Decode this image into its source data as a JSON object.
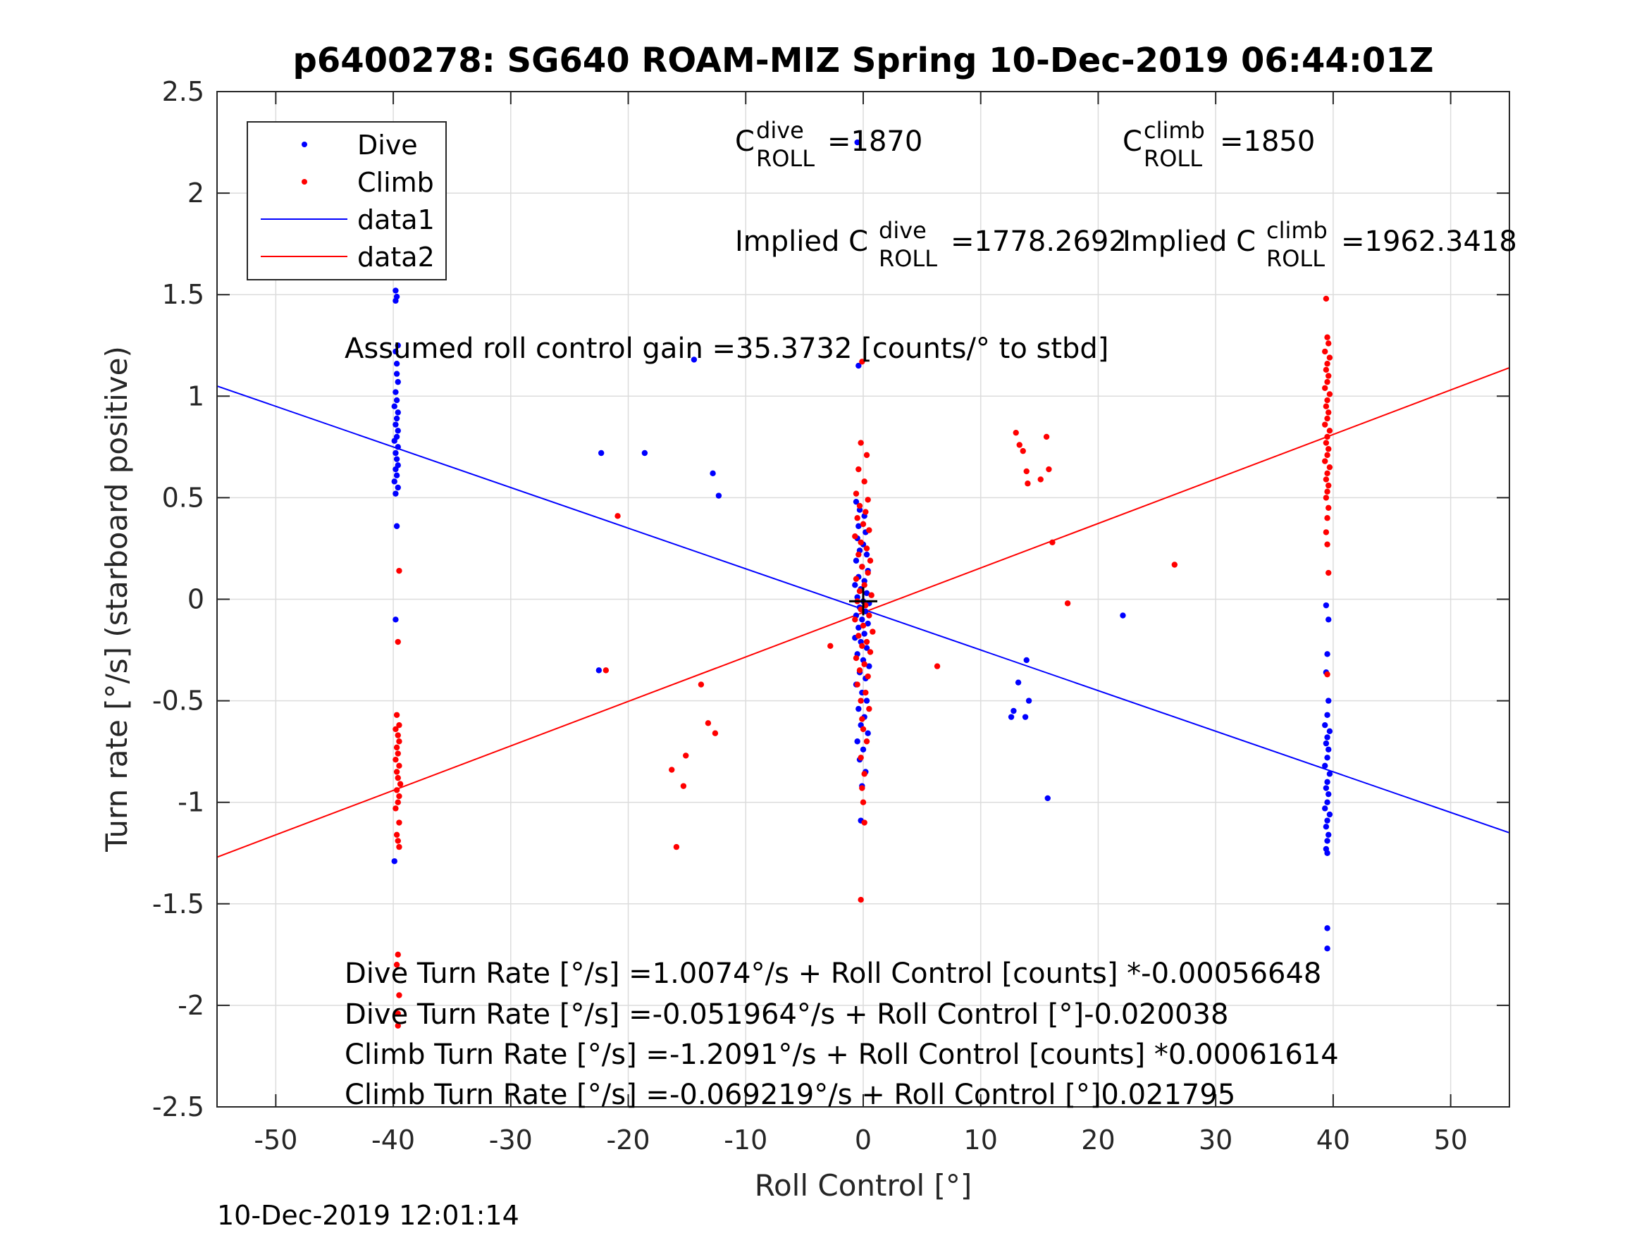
{
  "chart_data": {
    "type": "scatter",
    "title": "p6400278: SG640 ROAM-MIZ Spring 10-Dec-2019 06:44:01Z",
    "xlabel": "Roll Control [°]",
    "ylabel": "Turn rate [°/s] (starboard positive)",
    "xlim": [
      -55,
      55
    ],
    "ylim": [
      -2.5,
      2.5
    ],
    "xticks": [
      -50,
      -40,
      -30,
      -20,
      -10,
      0,
      10,
      20,
      30,
      40,
      50
    ],
    "yticks": [
      -2.5,
      -2,
      -1.5,
      -1,
      -0.5,
      0,
      0.5,
      1,
      1.5,
      2,
      2.5
    ],
    "xtick_labels": [
      "-50",
      "-40",
      "-30",
      "-20",
      "-10",
      "0",
      "10",
      "20",
      "30",
      "40",
      "50"
    ],
    "ytick_labels": [
      "-2.5",
      "-2",
      "-1.5",
      "-1",
      "-0.5",
      "0",
      "0.5",
      "1",
      "1.5",
      "2",
      "2.5"
    ],
    "grid": true,
    "legend_position": "top-left",
    "legend": [
      {
        "label": "Dive",
        "kind": "marker",
        "color": "#0000ff"
      },
      {
        "label": "Climb",
        "kind": "marker",
        "color": "#ff0000"
      },
      {
        "label": "data1",
        "kind": "line",
        "color": "#0000ff"
      },
      {
        "label": "data2",
        "kind": "line",
        "color": "#ff0000"
      }
    ],
    "series": [
      {
        "name": "Dive",
        "kind": "points",
        "color": "#0000ff",
        "points": [
          [
            -39.8,
            1.52
          ],
          [
            -39.7,
            1.49
          ],
          [
            -39.8,
            1.47
          ],
          [
            -39.6,
            1.25
          ],
          [
            -39.8,
            1.22
          ],
          [
            -39.7,
            1.16
          ],
          [
            -39.7,
            1.11
          ],
          [
            -39.6,
            1.07
          ],
          [
            -39.8,
            1.02
          ],
          [
            -39.7,
            0.98
          ],
          [
            -39.9,
            0.95
          ],
          [
            -39.6,
            0.92
          ],
          [
            -39.7,
            0.89
          ],
          [
            -39.8,
            0.86
          ],
          [
            -39.6,
            0.83
          ],
          [
            -39.7,
            0.8
          ],
          [
            -39.9,
            0.78
          ],
          [
            -39.6,
            0.75
          ],
          [
            -39.8,
            0.72
          ],
          [
            -39.7,
            0.69
          ],
          [
            -39.6,
            0.66
          ],
          [
            -39.8,
            0.64
          ],
          [
            -39.7,
            0.61
          ],
          [
            -39.9,
            0.58
          ],
          [
            -39.6,
            0.55
          ],
          [
            -39.8,
            0.52
          ],
          [
            -39.7,
            0.36
          ],
          [
            -39.8,
            -0.1
          ],
          [
            -39.9,
            -1.29
          ],
          [
            -22.3,
            0.72
          ],
          [
            -18.6,
            0.72
          ],
          [
            -14.4,
            1.18
          ],
          [
            -12.8,
            0.62
          ],
          [
            -12.3,
            0.51
          ],
          [
            -22.5,
            -0.35
          ],
          [
            -0.5,
            2.25
          ],
          [
            -0.4,
            1.15
          ],
          [
            -0.6,
            0.48
          ],
          [
            -0.3,
            0.44
          ],
          [
            0.1,
            0.41
          ],
          [
            -0.4,
            0.36
          ],
          [
            0.2,
            0.33
          ],
          [
            -0.5,
            0.3
          ],
          [
            0.0,
            0.27
          ],
          [
            -0.3,
            0.24
          ],
          [
            0.3,
            0.22
          ],
          [
            -0.6,
            0.19
          ],
          [
            -0.1,
            0.16
          ],
          [
            0.4,
            0.14
          ],
          [
            -0.4,
            0.11
          ],
          [
            0.1,
            0.09
          ],
          [
            -0.7,
            0.07
          ],
          [
            -0.2,
            0.05
          ],
          [
            0.3,
            0.03
          ],
          [
            -0.5,
            0.01
          ],
          [
            0.0,
            -0.01
          ],
          [
            0.5,
            -0.02
          ],
          [
            -0.3,
            -0.04
          ],
          [
            0.2,
            -0.06
          ],
          [
            -0.6,
            -0.08
          ],
          [
            -0.1,
            -0.1
          ],
          [
            0.4,
            -0.12
          ],
          [
            -0.4,
            -0.14
          ],
          [
            0.1,
            -0.17
          ],
          [
            -0.7,
            -0.19
          ],
          [
            -0.2,
            -0.21
          ],
          [
            0.3,
            -0.24
          ],
          [
            -0.5,
            -0.27
          ],
          [
            0.0,
            -0.3
          ],
          [
            0.5,
            -0.33
          ],
          [
            -0.3,
            -0.36
          ],
          [
            0.2,
            -0.39
          ],
          [
            -0.6,
            -0.42
          ],
          [
            -0.1,
            -0.46
          ],
          [
            0.3,
            -0.5
          ],
          [
            -0.4,
            -0.54
          ],
          [
            0.1,
            -0.58
          ],
          [
            -0.2,
            -0.62
          ],
          [
            0.4,
            -0.66
          ],
          [
            -0.5,
            -0.7
          ],
          [
            0.0,
            -0.74
          ],
          [
            -0.3,
            -0.79
          ],
          [
            0.2,
            -0.85
          ],
          [
            -0.1,
            -0.92
          ],
          [
            -0.2,
            -1.09
          ],
          [
            12.8,
            -0.55
          ],
          [
            13.2,
            -0.41
          ],
          [
            12.6,
            -0.58
          ],
          [
            13.9,
            -0.3
          ],
          [
            13.8,
            -0.58
          ],
          [
            14.1,
            -0.5
          ],
          [
            15.7,
            -0.98
          ],
          [
            22.1,
            -0.08
          ],
          [
            39.4,
            -0.03
          ],
          [
            39.6,
            -0.1
          ],
          [
            39.5,
            -0.27
          ],
          [
            39.4,
            -0.36
          ],
          [
            39.6,
            -0.5
          ],
          [
            39.5,
            -0.57
          ],
          [
            39.3,
            -0.62
          ],
          [
            39.7,
            -0.65
          ],
          [
            39.5,
            -0.68
          ],
          [
            39.4,
            -0.71
          ],
          [
            39.6,
            -0.74
          ],
          [
            39.5,
            -0.78
          ],
          [
            39.3,
            -0.82
          ],
          [
            39.7,
            -0.86
          ],
          [
            39.5,
            -0.9
          ],
          [
            39.4,
            -0.93
          ],
          [
            39.6,
            -0.96
          ],
          [
            39.5,
            -1.0
          ],
          [
            39.3,
            -1.03
          ],
          [
            39.7,
            -1.06
          ],
          [
            39.5,
            -1.09
          ],
          [
            39.4,
            -1.12
          ],
          [
            39.6,
            -1.16
          ],
          [
            39.5,
            -1.19
          ],
          [
            39.4,
            -1.23
          ],
          [
            39.5,
            -1.25
          ],
          [
            39.5,
            -1.62
          ],
          [
            39.5,
            -1.72
          ]
        ]
      },
      {
        "name": "Climb",
        "kind": "points",
        "color": "#ff0000",
        "points": [
          [
            -39.5,
            0.14
          ],
          [
            -39.6,
            -0.21
          ],
          [
            -39.7,
            -0.57
          ],
          [
            -39.5,
            -0.62
          ],
          [
            -39.8,
            -0.64
          ],
          [
            -39.6,
            -0.67
          ],
          [
            -39.5,
            -0.7
          ],
          [
            -39.7,
            -0.73
          ],
          [
            -39.6,
            -0.76
          ],
          [
            -39.8,
            -0.79
          ],
          [
            -39.5,
            -0.82
          ],
          [
            -39.7,
            -0.85
          ],
          [
            -39.6,
            -0.88
          ],
          [
            -39.4,
            -0.91
          ],
          [
            -39.7,
            -0.94
          ],
          [
            -39.5,
            -0.97
          ],
          [
            -39.6,
            -1.0
          ],
          [
            -39.8,
            -1.03
          ],
          [
            -39.5,
            -1.1
          ],
          [
            -39.7,
            -1.16
          ],
          [
            -39.6,
            -1.19
          ],
          [
            -39.5,
            -1.22
          ],
          [
            -39.6,
            -1.75
          ],
          [
            -39.7,
            -1.8
          ],
          [
            -39.5,
            -1.95
          ],
          [
            -39.6,
            -2.04
          ],
          [
            -39.6,
            -2.1
          ],
          [
            -20.9,
            0.41
          ],
          [
            -21.9,
            -0.35
          ],
          [
            -16.3,
            -0.84
          ],
          [
            -15.1,
            -0.77
          ],
          [
            -15.3,
            -0.92
          ],
          [
            -15.9,
            -1.22
          ],
          [
            -13.8,
            -0.42
          ],
          [
            -13.2,
            -0.61
          ],
          [
            -12.6,
            -0.66
          ],
          [
            -2.8,
            -0.23
          ],
          [
            6.3,
            -0.33
          ],
          [
            -0.1,
            1.17
          ],
          [
            -0.2,
            0.77
          ],
          [
            0.3,
            0.71
          ],
          [
            -0.4,
            0.64
          ],
          [
            0.1,
            0.58
          ],
          [
            -0.6,
            0.52
          ],
          [
            0.4,
            0.49
          ],
          [
            -0.3,
            0.46
          ],
          [
            0.2,
            0.43
          ],
          [
            -0.5,
            0.4
          ],
          [
            0.0,
            0.37
          ],
          [
            0.5,
            0.34
          ],
          [
            -0.7,
            0.31
          ],
          [
            -0.2,
            0.28
          ],
          [
            0.3,
            0.25
          ],
          [
            -0.4,
            0.22
          ],
          [
            0.6,
            0.19
          ],
          [
            -0.1,
            0.16
          ],
          [
            0.4,
            0.13
          ],
          [
            -0.6,
            0.1
          ],
          [
            0.1,
            0.07
          ],
          [
            -0.3,
            0.04
          ],
          [
            0.7,
            0.02
          ],
          [
            -0.5,
            -0.01
          ],
          [
            0.2,
            -0.03
          ],
          [
            -0.2,
            -0.05
          ],
          [
            0.5,
            -0.08
          ],
          [
            -0.7,
            -0.1
          ],
          [
            0.0,
            -0.13
          ],
          [
            0.8,
            -0.16
          ],
          [
            -0.4,
            -0.18
          ],
          [
            0.3,
            -0.21
          ],
          [
            -0.1,
            -0.23
          ],
          [
            0.6,
            -0.26
          ],
          [
            -0.6,
            -0.29
          ],
          [
            0.1,
            -0.32
          ],
          [
            -0.3,
            -0.35
          ],
          [
            0.4,
            -0.38
          ],
          [
            -0.5,
            -0.42
          ],
          [
            0.2,
            -0.46
          ],
          [
            -0.2,
            -0.5
          ],
          [
            0.5,
            -0.54
          ],
          [
            -0.1,
            -0.59
          ],
          [
            0.0,
            -0.64
          ],
          [
            0.3,
            -0.7
          ],
          [
            -0.2,
            -0.78
          ],
          [
            0.1,
            -0.86
          ],
          [
            -0.1,
            -0.93
          ],
          [
            0.0,
            -1.0
          ],
          [
            0.1,
            -1.1
          ],
          [
            -0.2,
            -1.48
          ],
          [
            13.0,
            0.82
          ],
          [
            13.3,
            0.76
          ],
          [
            13.6,
            0.73
          ],
          [
            15.6,
            0.8
          ],
          [
            13.9,
            0.63
          ],
          [
            15.8,
            0.64
          ],
          [
            14.0,
            0.57
          ],
          [
            15.1,
            0.59
          ],
          [
            16.1,
            0.28
          ],
          [
            17.4,
            -0.02
          ],
          [
            26.5,
            0.17
          ],
          [
            39.4,
            1.48
          ],
          [
            39.5,
            1.29
          ],
          [
            39.6,
            1.26
          ],
          [
            39.3,
            1.22
          ],
          [
            39.7,
            1.19
          ],
          [
            39.5,
            1.16
          ],
          [
            39.4,
            1.13
          ],
          [
            39.6,
            1.1
          ],
          [
            39.5,
            1.07
          ],
          [
            39.3,
            1.04
          ],
          [
            39.7,
            1.01
          ],
          [
            39.5,
            0.98
          ],
          [
            39.4,
            0.95
          ],
          [
            39.6,
            0.92
          ],
          [
            39.5,
            0.89
          ],
          [
            39.3,
            0.86
          ],
          [
            39.7,
            0.83
          ],
          [
            39.5,
            0.8
          ],
          [
            39.4,
            0.77
          ],
          [
            39.6,
            0.74
          ],
          [
            39.5,
            0.71
          ],
          [
            39.3,
            0.68
          ],
          [
            39.7,
            0.65
          ],
          [
            39.5,
            0.62
          ],
          [
            39.4,
            0.59
          ],
          [
            39.6,
            0.56
          ],
          [
            39.5,
            0.53
          ],
          [
            39.4,
            0.5
          ],
          [
            39.6,
            0.45
          ],
          [
            39.5,
            0.4
          ],
          [
            39.4,
            0.33
          ],
          [
            39.5,
            0.27
          ],
          [
            39.6,
            0.13
          ],
          [
            39.5,
            -0.37
          ]
        ]
      },
      {
        "name": "data1",
        "kind": "line",
        "color": "#0000ff",
        "points": [
          [
            -55,
            1.05
          ],
          [
            55,
            -1.15
          ]
        ]
      },
      {
        "name": "data2",
        "kind": "line",
        "color": "#ff0000",
        "points": [
          [
            -55,
            -1.27
          ],
          [
            55,
            1.14
          ]
        ]
      }
    ],
    "crosshair": {
      "x": 0,
      "y": -0.01,
      "color": "#000000"
    },
    "annotations": {
      "c_roll_dive": {
        "base": "C",
        "sup": "dive",
        "sub": "ROLL",
        "value": "=1870"
      },
      "c_roll_climb": {
        "base": "C",
        "sup": "climb",
        "sub": "ROLL",
        "value": "=1850"
      },
      "implied_dive": {
        "prefix": "Implied C",
        "sup": "dive",
        "sub": "ROLL",
        "value": "=1778.2692"
      },
      "implied_climb": {
        "prefix": "Implied C",
        "sup": "climb",
        "sub": "ROLL",
        "value": "=1962.3418"
      },
      "gain": "Assumed roll control gain =35.3732 [counts/° to stbd]",
      "eq_dive_counts": "Dive Turn Rate [°/s] =1.0074°/s + Roll Control [counts] *-0.00056648",
      "eq_dive_deg": "Dive Turn Rate [°/s] =-0.051964°/s + Roll Control [°]-0.020038",
      "eq_climb_counts": "Climb Turn Rate [°/s] =-1.2091°/s + Roll Control [counts] *0.00061614",
      "eq_climb_deg": "Climb Turn Rate [°/s] =-0.069219°/s + Roll Control [°]0.021795"
    },
    "footer_timestamp": "10-Dec-2019 12:01:14"
  }
}
